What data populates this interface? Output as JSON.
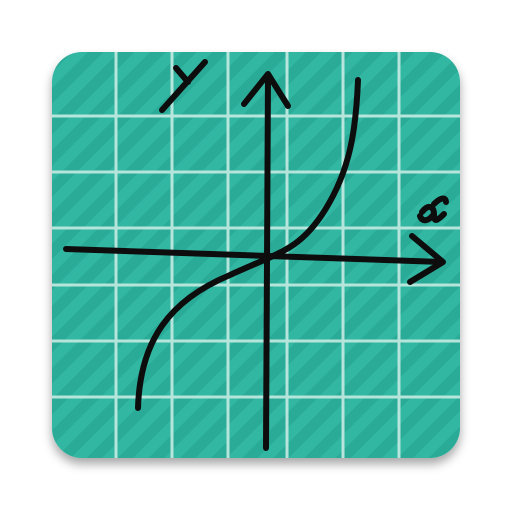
{
  "app_icon": {
    "x_axis_letter": "x",
    "y_axis_letter": "y"
  },
  "colors": {
    "tile_background": "#2bab98",
    "tile_stripe": "#33b7a3",
    "grid_line": "#c5ebe3",
    "ink": "#0d0d0d",
    "shadow": "#9e9e9e"
  },
  "icons": [
    "graph-calculator-icon",
    "x-axis-arrow-icon",
    "y-axis-arrow-icon",
    "curve-icon"
  ]
}
